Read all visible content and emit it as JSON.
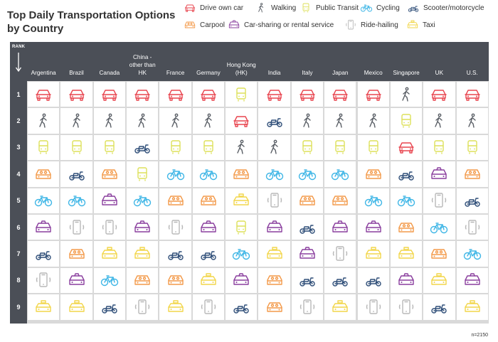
{
  "title": "Top Daily Transportation Options by Country",
  "legend": [
    {
      "key": "car",
      "label": "Drive own car"
    },
    {
      "key": "walk",
      "label": "Walking"
    },
    {
      "key": "transit",
      "label": "Public Transit"
    },
    {
      "key": "bike",
      "label": "Cycling"
    },
    {
      "key": "scooter",
      "label": "Scooter/motorcycle"
    },
    {
      "key": "carpool",
      "label": "Carpool"
    },
    {
      "key": "share",
      "label": "Car-sharing or rental service"
    },
    {
      "key": "ride",
      "label": "Ride-hailing"
    },
    {
      "key": "taxi",
      "label": "Taxi"
    }
  ],
  "rank_label": "RANK",
  "columns": [
    "Argentina",
    "Brazil",
    "Canada",
    "China - other than HK",
    "France",
    "Germany",
    "Hong Kong (HK)",
    "India",
    "Italy",
    "Japan",
    "Mexico",
    "Singapore",
    "UK",
    "U.S."
  ],
  "ranks": [
    "1",
    "2",
    "3",
    "4",
    "5",
    "6",
    "7",
    "8",
    "9"
  ],
  "grid": [
    [
      "car",
      "car",
      "car",
      "car",
      "car",
      "car",
      "transit",
      "car",
      "car",
      "car",
      "car",
      "walk",
      "car",
      "car"
    ],
    [
      "walk",
      "walk",
      "walk",
      "walk",
      "walk",
      "walk",
      "car",
      "scooter",
      "walk",
      "walk",
      "walk",
      "transit",
      "walk",
      "walk"
    ],
    [
      "transit",
      "transit",
      "transit",
      "scooter",
      "transit",
      "transit",
      "walk",
      "walk",
      "transit",
      "transit",
      "transit",
      "car",
      "transit",
      "transit"
    ],
    [
      "carpool",
      "scooter",
      "carpool",
      "transit",
      "bike",
      "bike",
      "carpool",
      "bike",
      "bike",
      "bike",
      "carpool",
      "scooter",
      "share",
      "carpool"
    ],
    [
      "bike",
      "bike",
      "share",
      "bike",
      "carpool",
      "carpool",
      "taxi",
      "ride",
      "carpool",
      "carpool",
      "bike",
      "bike",
      "ride",
      "scooter"
    ],
    [
      "share",
      "ride",
      "ride",
      "share",
      "ride",
      "share",
      "transit",
      "share",
      "scooter",
      "share",
      "share",
      "carpool",
      "bike",
      "ride"
    ],
    [
      "scooter",
      "carpool",
      "taxi",
      "taxi",
      "scooter",
      "scooter",
      "bike",
      "taxi",
      "share",
      "ride",
      "taxi",
      "taxi",
      "carpool",
      "bike"
    ],
    [
      "ride",
      "share",
      "bike",
      "carpool",
      "carpool",
      "taxi",
      "share",
      "carpool",
      "scooter",
      "scooter",
      "scooter",
      "share",
      "taxi",
      "share"
    ],
    [
      "taxi",
      "taxi",
      "scooter",
      "ride",
      "taxi",
      "ride",
      "scooter",
      "carpool",
      "ride",
      "taxi",
      "ride",
      "ride",
      "scooter",
      "taxi"
    ]
  ],
  "colors": {
    "car": "#e8454f",
    "walk": "#5a5f66",
    "transit": "#dde05a",
    "bike": "#3fb6e6",
    "scooter": "#2f4e78",
    "carpool": "#f39a4a",
    "share": "#8a3f9e",
    "ride": "#b8b8b8",
    "taxi": "#f2d64a",
    "header_bg": "#4b4f57"
  },
  "note": "n=2150"
}
